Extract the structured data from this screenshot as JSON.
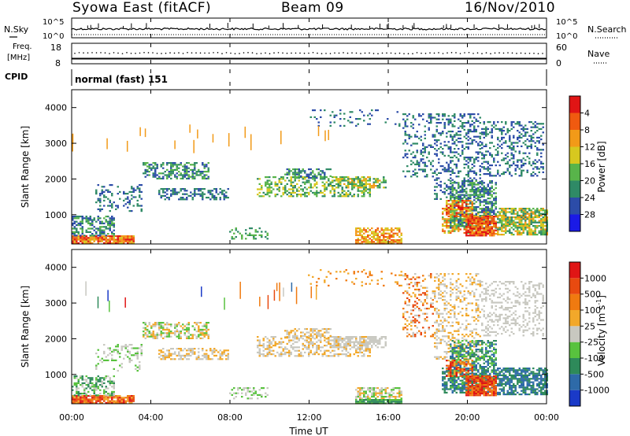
{
  "header": {
    "station": "Syowa East (fitACF)",
    "beam": "Beam 09",
    "date": "16/Nov/2010"
  },
  "top_panel": {
    "nsky_label": "N.Sky",
    "nsearch_label": "N.Search",
    "left_ticks": [
      "10^5",
      "10^0"
    ],
    "right_ticks": [
      "10^5",
      "10^0"
    ]
  },
  "freq_panel": {
    "freq_label": "Freq.",
    "freq_unit": "[MHz]",
    "nave_label": "Nave",
    "left_ticks": [
      "18",
      "8"
    ],
    "right_ticks": [
      "60",
      "0"
    ]
  },
  "cpid": {
    "label": "CPID",
    "value": "normal (fast) 151"
  },
  "chart_data": [
    {
      "type": "heatmap",
      "name": "power",
      "ylabel": "Slant Range [km]",
      "ylim": [
        180,
        4500
      ],
      "yticks": [
        "1000",
        "2000",
        "3000",
        "4000"
      ],
      "colorbar_label": "Power [dB]",
      "colorbar_ticks": [
        "4",
        "8",
        "12",
        "16",
        "20",
        "24",
        "28"
      ],
      "colorbar_colors": [
        "#1a1ae6",
        "#2c4ca8",
        "#2f8a66",
        "#58b44a",
        "#d7c81f",
        "#f29a18",
        "#f05a10",
        "#e01515"
      ]
    },
    {
      "type": "heatmap",
      "name": "velocity",
      "ylabel": "Slant Range [km]",
      "ylim": [
        180,
        4500
      ],
      "yticks": [
        "1000",
        "2000",
        "3000",
        "4000"
      ],
      "xlabel": "Time UT",
      "xticks": [
        "00:00",
        "04:00",
        "08:00",
        "12:00",
        "16:00",
        "20:00",
        "00:00"
      ],
      "colorbar_label": "Velocity [m s",
      "colorbar_label_sup": "-1",
      "colorbar_label_end": "]",
      "colorbar_ticks": [
        "1000",
        "500",
        "100",
        "25",
        "-25",
        "-100",
        "-500",
        "-1000"
      ],
      "colorbar_colors": [
        "#1a3ac8",
        "#2e6aa8",
        "#2e8a5a",
        "#58c23e",
        "#c8c8c0",
        "#f2a82a",
        "#f07a10",
        "#e84a10",
        "#e01515"
      ]
    }
  ]
}
